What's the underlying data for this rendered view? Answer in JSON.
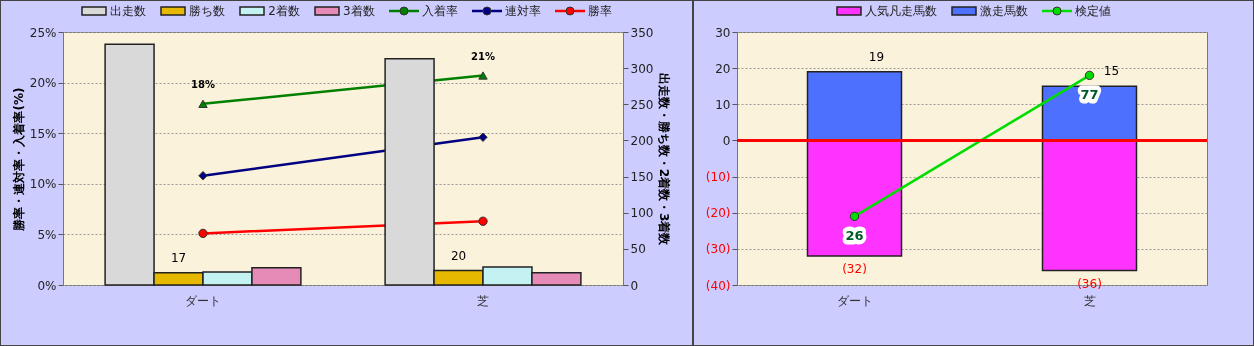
{
  "chart_data": [
    {
      "type": "bar",
      "categories": [
        "ダート",
        "芝"
      ],
      "ylabel": "勝率・連対率・入着率(%)",
      "y2label": "出走数・勝ち数・2着数・3着数",
      "ylim": [
        0,
        25
      ],
      "yticks": [
        {
          "value": 0,
          "label": "0%"
        },
        {
          "value": 5,
          "label": "5%"
        },
        {
          "value": 10,
          "label": "10%"
        },
        {
          "value": 15,
          "label": "15%"
        },
        {
          "value": 20,
          "label": "20%"
        },
        {
          "value": 25,
          "label": "25%"
        }
      ],
      "y2lim": [
        0,
        350
      ],
      "y2ticks": [
        0,
        50,
        100,
        150,
        200,
        250,
        300,
        350
      ],
      "grid": "y",
      "legend": "top",
      "series": [
        {
          "name": "出走数",
          "axis": "y2",
          "color": "#d9d9d9",
          "values": [
            333,
            313
          ]
        },
        {
          "name": "勝ち数",
          "axis": "y2",
          "color": "#e6b800",
          "values": [
            17,
            20
          ],
          "value_labels": [
            "17",
            "20"
          ]
        },
        {
          "name": "2着数",
          "axis": "y2",
          "color": "#c4f2f2",
          "values": [
            18,
            25
          ]
        },
        {
          "name": "3着数",
          "axis": "y2",
          "color": "#e68ab8",
          "values": [
            24,
            17
          ]
        },
        {
          "name": "入着率",
          "type": "line",
          "color": "#008000",
          "marker": "triangle",
          "values": [
            17.9,
            20.7
          ],
          "value_labels": [
            "18%",
            "21%"
          ]
        },
        {
          "name": "連対率",
          "type": "line",
          "color": "#000080",
          "marker": "diamond",
          "values": [
            10.8,
            14.6
          ]
        },
        {
          "name": "勝率",
          "type": "line",
          "color": "#ff0000",
          "marker": "circle",
          "values": [
            5.1,
            6.3
          ]
        }
      ]
    },
    {
      "type": "bar",
      "stacked": true,
      "categories": [
        "ダート",
        "芝"
      ],
      "ylim": [
        -40,
        30
      ],
      "yticks": [
        {
          "value": -40,
          "label": "(40)"
        },
        {
          "value": -30,
          "label": "(30)"
        },
        {
          "value": -20,
          "label": "(20)"
        },
        {
          "value": -10,
          "label": "(10)"
        },
        0,
        10,
        20,
        30
      ],
      "grid": "y",
      "legend": "top",
      "ref_lines": [
        {
          "axis": "y",
          "value": 0,
          "color": "#ff0000"
        }
      ],
      "annotations": [
        {
          "text": "26",
          "x": "ダート",
          "y": -21
        },
        {
          "text": "77",
          "x": "芝",
          "y": 18
        }
      ],
      "series": [
        {
          "name": "人気凡走馬数",
          "color": "#ff33ff",
          "values": [
            -32,
            -36
          ],
          "value_labels": [
            "(32)",
            "(36)"
          ]
        },
        {
          "name": "激走馬数",
          "color": "#4d70ff",
          "values": [
            19,
            15
          ],
          "value_labels": [
            "19",
            "15"
          ]
        },
        {
          "name": "検定値",
          "type": "line",
          "color": "#00dd00",
          "marker": "circle",
          "values": [
            -21,
            18
          ]
        }
      ]
    }
  ]
}
